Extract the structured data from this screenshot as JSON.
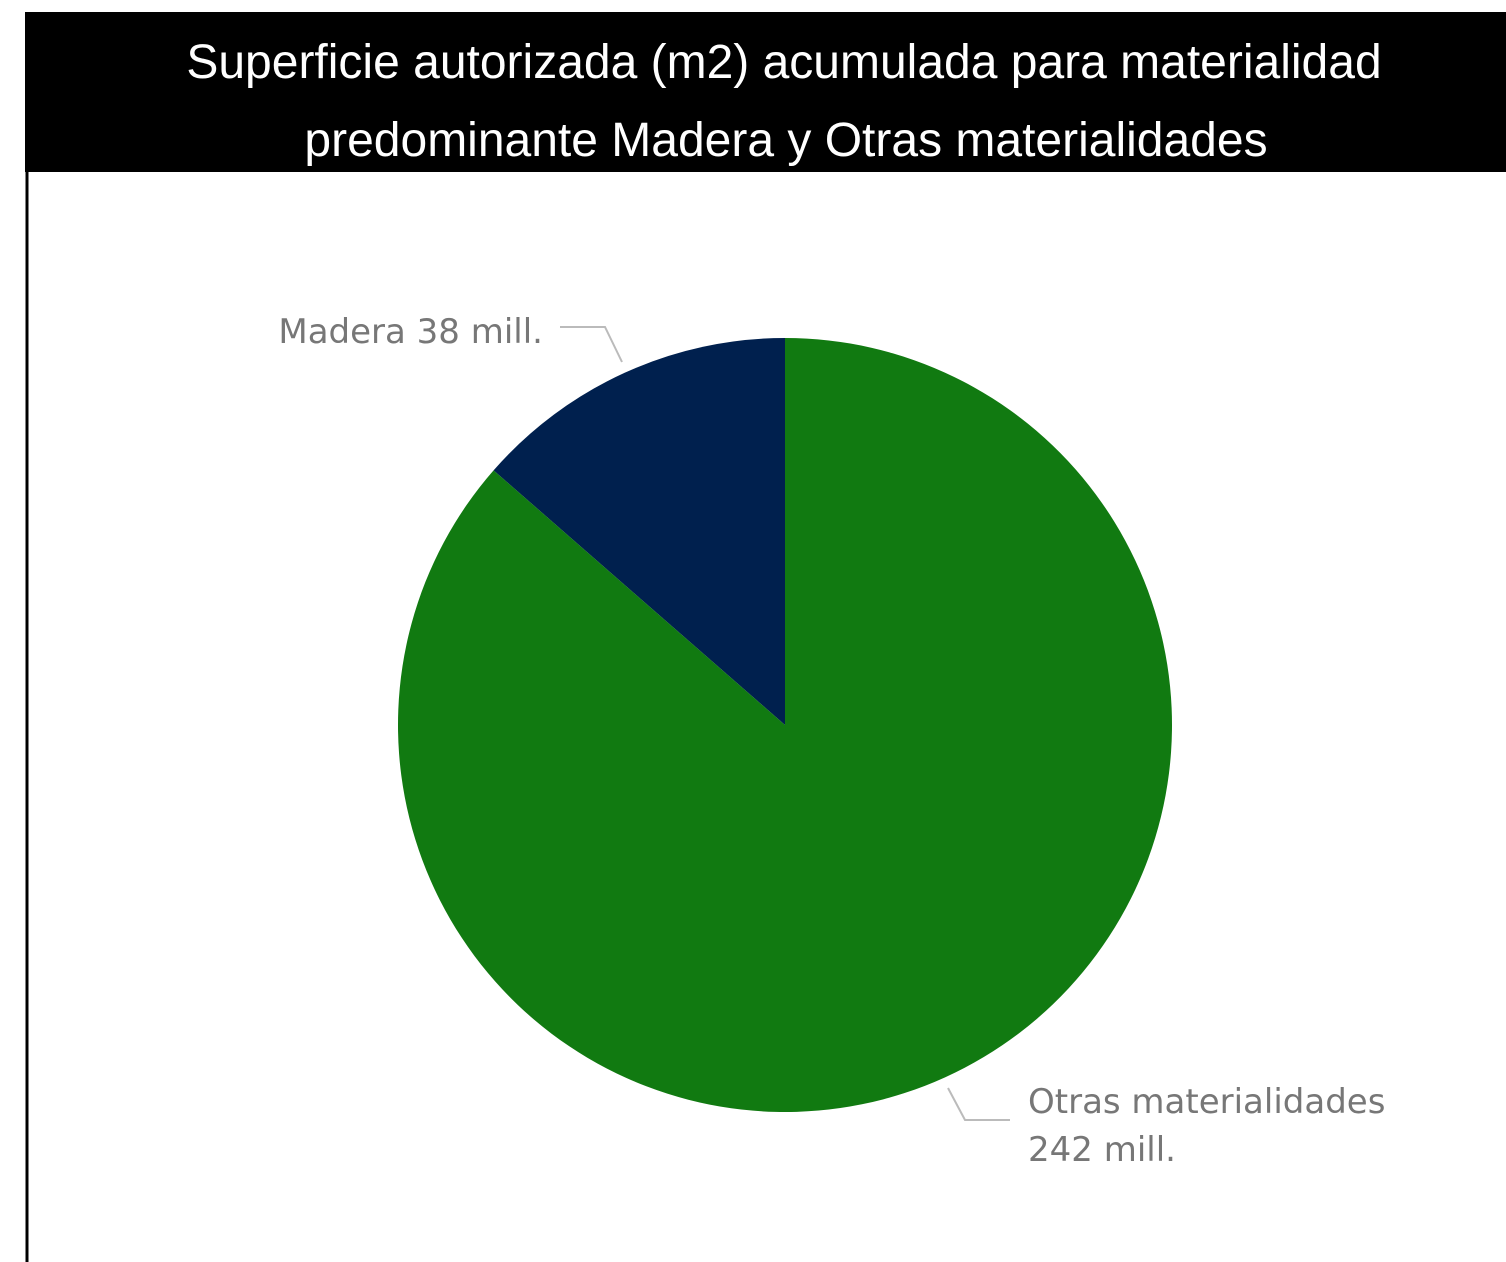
{
  "chart_data": {
    "type": "pie",
    "title": [
      "Superficie autorizada (m2) acumulada para materialidad",
      "predominante Madera y Otras materialidades"
    ],
    "categories": [
      "Madera",
      "Otras materialidades"
    ],
    "values": [
      38,
      242
    ],
    "value_labels": [
      "38 mill.",
      "242 mill."
    ],
    "colors": [
      "#00204e",
      "#117a11"
    ]
  }
}
